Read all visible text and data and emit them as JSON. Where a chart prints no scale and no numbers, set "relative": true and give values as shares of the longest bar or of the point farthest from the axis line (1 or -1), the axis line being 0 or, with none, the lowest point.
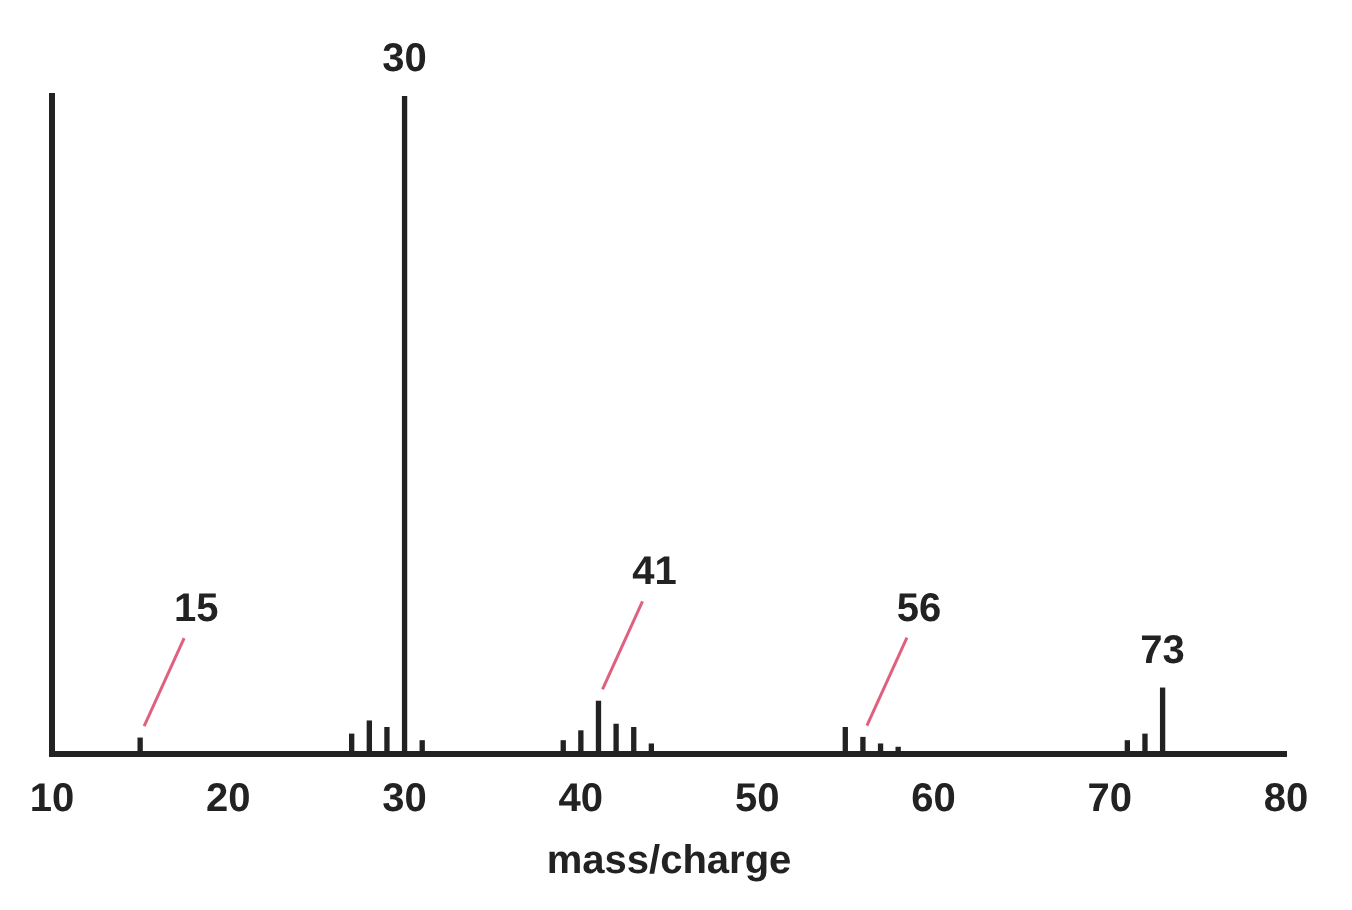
{
  "chart_data": {
    "type": "bar",
    "relative": true,
    "xlabel": "mass/charge",
    "xlim": [
      10,
      80
    ],
    "xticks": [
      10,
      20,
      30,
      40,
      50,
      60,
      70,
      80
    ],
    "color": "#222222",
    "grid": false,
    "x": [
      15,
      27,
      28,
      29,
      30,
      31,
      39,
      40,
      41,
      42,
      43,
      44,
      55,
      56,
      57,
      58,
      71,
      72,
      73
    ],
    "values": [
      0.024,
      0.03,
      0.05,
      0.04,
      1,
      0.02,
      0.02,
      0.035,
      0.08,
      0.045,
      0.04,
      0.015,
      0.04,
      0.025,
      0.015,
      0.01,
      0.02,
      0.03,
      0.1
    ],
    "annotations": [
      {
        "text": "15",
        "x": 15,
        "y": 0.024
      },
      {
        "text": "30",
        "x": 30,
        "y": 1
      },
      {
        "text": "41",
        "x": 41,
        "y": 0.08
      },
      {
        "text": "56",
        "x": 56,
        "y": 0.025
      },
      {
        "text": "73",
        "x": 73,
        "y": 0.1
      }
    ]
  }
}
